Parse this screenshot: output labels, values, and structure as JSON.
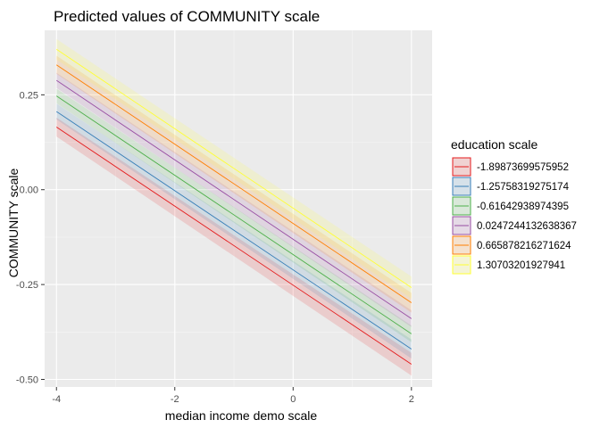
{
  "chart_data": {
    "type": "line",
    "title": "Predicted values of COMMUNITY scale",
    "xlabel": "median income demo scale",
    "ylabel": "COMMUNITY scale",
    "xlim": [
      -4.2,
      2.35
    ],
    "ylim": [
      -0.52,
      0.42
    ],
    "x_ticks": [
      -4,
      -2,
      0,
      2
    ],
    "x_tick_labels": [
      "-4",
      "-2",
      "0",
      "2"
    ],
    "y_ticks": [
      -0.5,
      -0.25,
      0,
      0.25
    ],
    "y_tick_labels": [
      "-0.50",
      "-0.25",
      "0.00",
      "0.25"
    ],
    "grid": true,
    "legend": {
      "title": "education scale",
      "position": "right"
    },
    "x": [
      -4,
      2
    ],
    "series": [
      {
        "name": "-1.89873699575952",
        "color": "#e41a1c",
        "values": [
          0.165,
          -0.46
        ],
        "ci_lower": [
          0.14,
          -0.49
        ],
        "ci_upper": [
          0.19,
          -0.43
        ]
      },
      {
        "name": "-1.25758319275174",
        "color": "#377eb8",
        "values": [
          0.206,
          -0.42
        ],
        "ci_lower": [
          0.185,
          -0.445
        ],
        "ci_upper": [
          0.227,
          -0.395
        ]
      },
      {
        "name": "-0.61642938974395",
        "color": "#4daf4a",
        "values": [
          0.247,
          -0.38
        ],
        "ci_lower": [
          0.228,
          -0.402
        ],
        "ci_upper": [
          0.266,
          -0.358
        ]
      },
      {
        "name": "0.0247244132638367",
        "color": "#984ea3",
        "values": [
          0.288,
          -0.34
        ],
        "ci_lower": [
          0.268,
          -0.362
        ],
        "ci_upper": [
          0.308,
          -0.318
        ]
      },
      {
        "name": "0.665878216271624",
        "color": "#ff7f00",
        "values": [
          0.329,
          -0.298
        ],
        "ci_lower": [
          0.305,
          -0.324
        ],
        "ci_upper": [
          0.353,
          -0.272
        ]
      },
      {
        "name": "1.30703201927941",
        "color": "#ffff33",
        "values": [
          0.37,
          -0.258
        ],
        "ci_lower": [
          0.343,
          -0.287
        ],
        "ci_upper": [
          0.397,
          -0.229
        ]
      }
    ]
  },
  "colors": {
    "panel_background": "#ebebeb",
    "grid_major": "#ffffff",
    "grid_minor": "#f5f5f5",
    "legend_key_background": "#f2f2f2"
  }
}
